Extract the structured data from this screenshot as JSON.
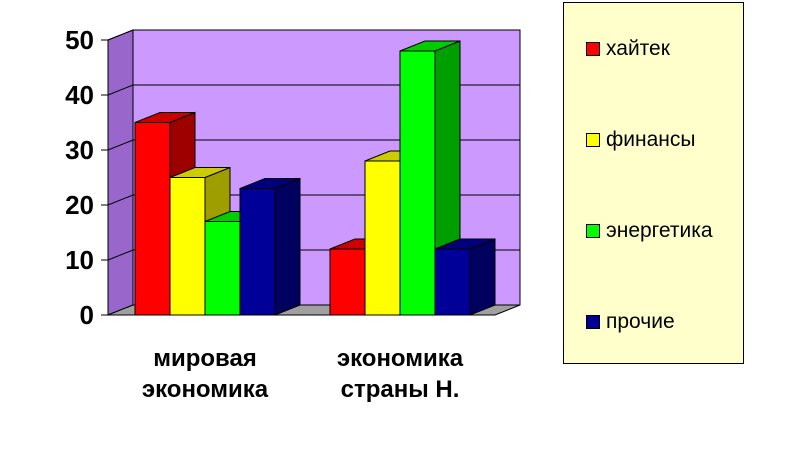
{
  "chart_data": {
    "type": "bar",
    "categories": [
      "мировая экономика",
      "экономика страны Н."
    ],
    "category_lines": [
      [
        "мировая",
        "экономика"
      ],
      [
        "экономика",
        "страны Н."
      ]
    ],
    "series": [
      {
        "name": "хайтек",
        "values": [
          35,
          12
        ],
        "color": "#ff0000"
      },
      {
        "name": "финансы",
        "values": [
          25,
          28
        ],
        "color": "#ffff00"
      },
      {
        "name": "энергетика",
        "values": [
          17,
          48
        ],
        "color": "#00ff00"
      },
      {
        "name": "прочие",
        "values": [
          23,
          12
        ],
        "color": "#000099"
      }
    ],
    "ylim": [
      0,
      50
    ],
    "yticks": [
      "0",
      "10",
      "20",
      "30",
      "40",
      "50"
    ],
    "grid": true,
    "legend_position": "right",
    "wall_color": "#cc99ff",
    "three_d": true
  }
}
